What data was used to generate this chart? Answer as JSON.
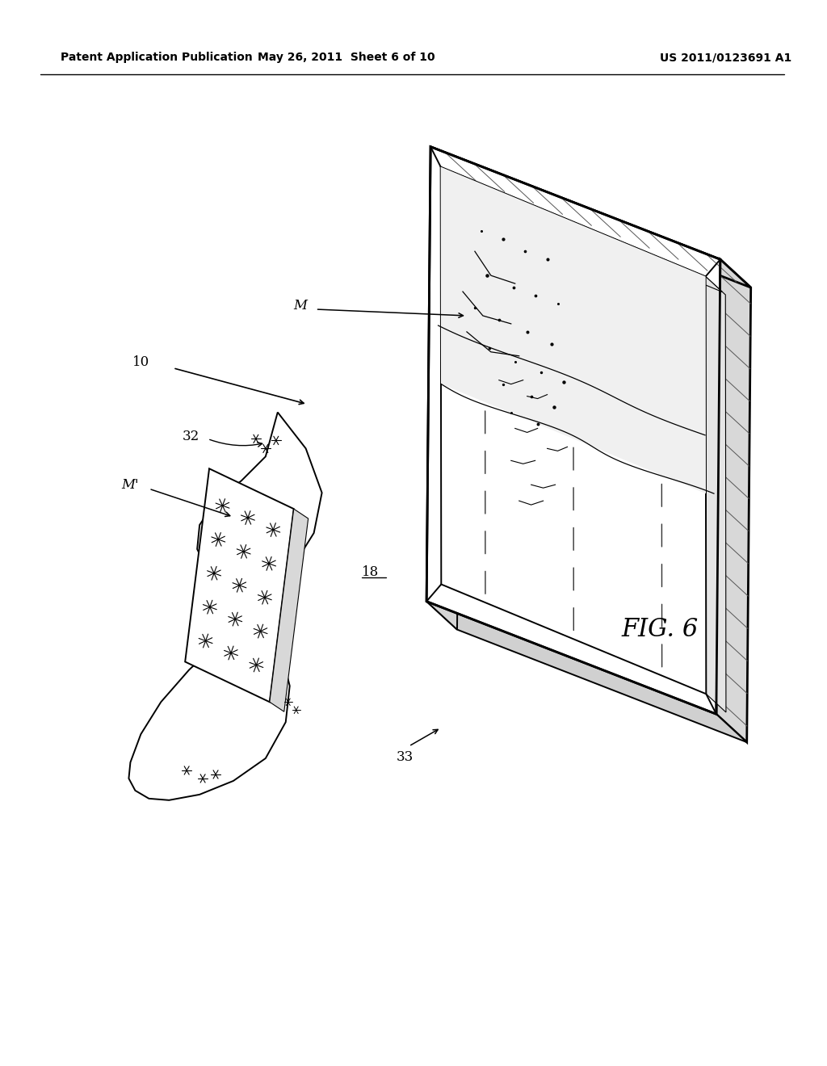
{
  "background_color": "#ffffff",
  "header_left": "Patent Application Publication",
  "header_mid": "May 26, 2011  Sheet 6 of 10",
  "header_right": "US 2011/0123691 A1",
  "fig_label": "FIG. 6",
  "tray_color": "#f5f5f5",
  "tray_edge_color": "#000000",
  "husk_color": "#f8f8f8"
}
